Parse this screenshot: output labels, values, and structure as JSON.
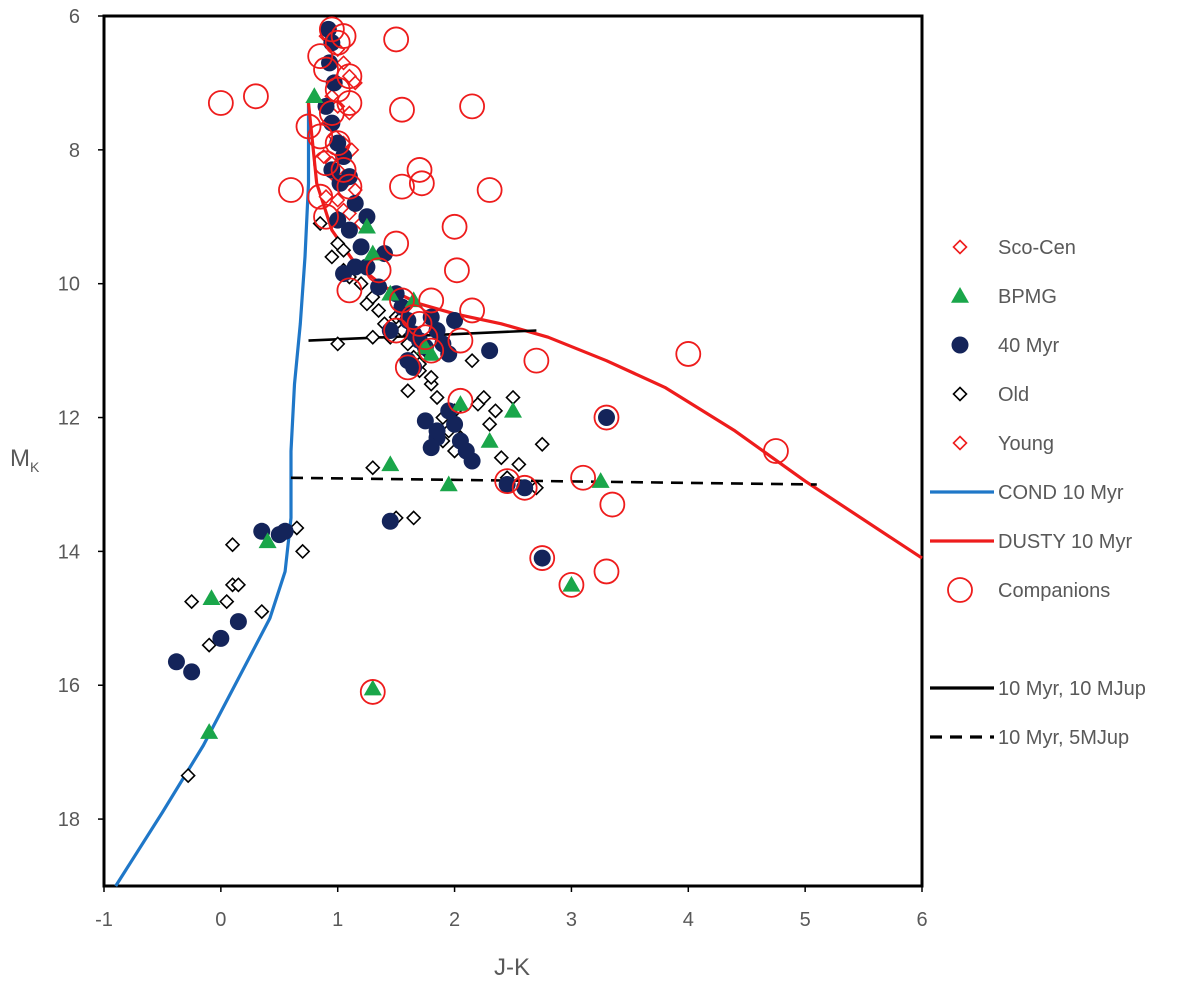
{
  "chart_data": {
    "type": "scatter",
    "title": "",
    "xlabel": "J-K",
    "ylabel": "M",
    "ylabel_sub": "K",
    "xlim": [
      -1,
      6
    ],
    "ylim": [
      19,
      6
    ],
    "y_inverted": true,
    "grid": false,
    "xticks": [
      "-1",
      "0",
      "1",
      "2",
      "3",
      "4",
      "5",
      "6"
    ],
    "yticks": [
      "6",
      "8",
      "10",
      "12",
      "14",
      "16",
      "18"
    ],
    "colors": {
      "red": "#ee1c1c",
      "green": "#1aa64a",
      "navy": "#14245a",
      "blue": "#1f77c8",
      "black": "#000000",
      "axis": "#000000"
    },
    "legend": [
      {
        "label": "Sco-Cen",
        "marker": "diamond",
        "color": "#ee1c1c"
      },
      {
        "label": "BPMG",
        "marker": "triangle",
        "color": "#1aa64a"
      },
      {
        "label": "40 Myr",
        "marker": "circle-filled",
        "color": "#14245a"
      },
      {
        "label": "Old",
        "marker": "diamond",
        "color": "#000000"
      },
      {
        "label": "Young",
        "marker": "diamond",
        "color": "#ee1c1c"
      },
      {
        "label": "COND 10 Myr",
        "marker": "line",
        "color": "#1f77c8"
      },
      {
        "label": "DUSTY 10 Myr",
        "marker": "line",
        "color": "#ee1c1c"
      },
      {
        "label": "Companions",
        "marker": "circle-open",
        "color": "#ee1c1c"
      },
      {
        "label": "10 Myr, 10 MJup",
        "marker": "line",
        "color": "#000000"
      },
      {
        "label": "10 Myr, 5MJup",
        "marker": "dashed",
        "color": "#000000"
      }
    ],
    "series": [
      {
        "name": "COND 10 Myr",
        "kind": "line",
        "color": "#1f77c8",
        "x": [
          -0.9,
          -0.5,
          -0.15,
          0.15,
          0.42,
          0.55,
          0.6,
          0.6,
          0.63,
          0.68,
          0.72,
          0.75,
          0.75
        ],
        "y": [
          19.0,
          17.9,
          16.9,
          15.9,
          15.0,
          14.3,
          13.5,
          12.5,
          11.5,
          10.6,
          9.6,
          8.5,
          7.3
        ]
      },
      {
        "name": "DUSTY 10 Myr",
        "kind": "line",
        "color": "#ee1c1c",
        "x": [
          0.75,
          0.82,
          0.95,
          1.15,
          1.4,
          1.7,
          2.0,
          2.4,
          2.8,
          3.3,
          3.8,
          4.4,
          5.0,
          6.0
        ],
        "y": [
          7.3,
          8.5,
          9.2,
          9.7,
          10.05,
          10.3,
          10.45,
          10.6,
          10.8,
          11.15,
          11.55,
          12.2,
          12.95,
          14.1
        ]
      },
      {
        "name": "10 Myr, 10 MJup",
        "kind": "line",
        "color": "#000000",
        "x": [
          0.75,
          2.7
        ],
        "y": [
          10.85,
          10.7
        ]
      },
      {
        "name": "10 Myr, 5MJup",
        "kind": "dashed",
        "color": "#000000",
        "x": [
          0.6,
          5.1
        ],
        "y": [
          12.9,
          13.0
        ]
      },
      {
        "name": "Old",
        "kind": "diamond",
        "color": "#000000",
        "x": [
          0.85,
          0.95,
          1.0,
          1.05,
          1.1,
          1.2,
          1.25,
          1.3,
          1.35,
          1.4,
          1.45,
          1.5,
          1.55,
          1.6,
          1.65,
          1.7,
          1.75,
          1.8,
          1.85,
          1.9,
          1.95,
          2.0,
          2.05,
          2.1,
          2.2,
          2.25,
          2.3,
          2.35,
          2.4,
          2.45,
          2.5,
          2.55,
          2.75,
          2.7,
          1.0,
          1.05,
          1.3,
          1.55,
          1.7,
          1.8,
          2.0,
          1.3,
          1.5,
          1.65,
          0.1,
          0.1,
          0.15,
          0.05,
          -0.1,
          -0.25,
          0.35,
          0.65,
          0.7,
          -0.28,
          1.9,
          2.15,
          1.6
        ],
        "y": [
          9.1,
          9.6,
          9.4,
          9.5,
          9.9,
          10.0,
          10.3,
          10.2,
          10.4,
          10.6,
          10.8,
          10.5,
          10.7,
          10.9,
          11.1,
          11.3,
          11.0,
          11.5,
          11.7,
          12.0,
          12.2,
          11.9,
          12.3,
          12.5,
          11.8,
          11.7,
          12.1,
          11.9,
          12.6,
          12.9,
          11.7,
          12.7,
          12.4,
          13.05,
          10.9,
          9.8,
          10.8,
          10.5,
          11.2,
          11.4,
          12.5,
          12.75,
          13.5,
          13.5,
          13.9,
          14.5,
          14.5,
          14.75,
          15.4,
          14.75,
          14.9,
          13.65,
          14.0,
          17.35,
          12.35,
          11.15,
          11.6
        ]
      },
      {
        "name": "Sco-Cen",
        "kind": "diamond",
        "color": "#ee1c1c",
        "x": [
          0.9,
          1.0,
          1.05,
          1.1,
          1.15,
          0.95,
          1.0,
          1.1,
          0.92,
          0.98,
          1.05,
          1.12,
          0.88,
          0.95,
          1.0,
          1.08,
          1.15,
          0.9,
          1.0,
          1.05,
          1.1,
          1.2,
          0.95,
          1.05
        ],
        "y": [
          6.3,
          6.5,
          6.7,
          6.9,
          7.0,
          7.2,
          7.35,
          7.45,
          7.6,
          7.8,
          7.9,
          8.0,
          8.1,
          8.2,
          8.3,
          8.45,
          8.6,
          8.7,
          8.75,
          8.9,
          8.95,
          9.1,
          8.35,
          8.5
        ]
      },
      {
        "name": "40 Myr",
        "kind": "circle-filled",
        "color": "#14245a",
        "x": [
          0.92,
          0.95,
          0.93,
          0.97,
          0.9,
          0.95,
          1.0,
          1.05,
          0.95,
          1.02,
          1.1,
          1.15,
          1.25,
          1.1,
          1.2,
          1.05,
          1.15,
          1.25,
          1.4,
          1.5,
          1.55,
          1.6,
          1.65,
          1.7,
          1.75,
          1.8,
          1.85,
          1.9,
          1.95,
          2.0,
          1.6,
          1.65,
          1.45,
          1.75,
          1.85,
          2.0,
          2.05,
          2.1,
          2.15,
          1.8,
          1.85,
          1.95,
          2.3,
          2.45,
          2.6,
          2.75,
          3.3,
          1.45,
          0.35,
          0.5,
          0.55,
          0.15,
          0.0,
          -0.25,
          -0.38,
          1.35,
          1.0
        ],
        "y": [
          6.2,
          6.4,
          6.7,
          7.0,
          7.35,
          7.6,
          7.9,
          8.1,
          8.3,
          8.5,
          8.4,
          8.8,
          9.0,
          9.2,
          9.45,
          9.85,
          9.75,
          9.75,
          9.55,
          10.15,
          10.35,
          10.55,
          10.75,
          10.85,
          10.95,
          10.5,
          10.7,
          10.9,
          11.05,
          10.55,
          11.15,
          11.25,
          10.7,
          12.05,
          12.3,
          12.1,
          12.35,
          12.5,
          12.65,
          12.45,
          12.2,
          11.9,
          11.0,
          13.0,
          13.05,
          14.1,
          12.0,
          13.55,
          13.7,
          13.75,
          13.7,
          15.05,
          15.3,
          15.8,
          15.65,
          10.05,
          9.05
        ]
      },
      {
        "name": "BPMG",
        "kind": "triangle",
        "color": "#1aa64a",
        "x": [
          0.8,
          1.25,
          1.3,
          1.45,
          1.75,
          2.05,
          2.3,
          2.5,
          1.45,
          1.95,
          3.25,
          0.4,
          -0.08,
          -0.1,
          1.3,
          3.0,
          1.8,
          1.65
        ],
        "y": [
          7.2,
          9.15,
          9.55,
          10.15,
          10.95,
          11.8,
          12.35,
          11.9,
          12.7,
          13.0,
          12.95,
          13.85,
          14.7,
          16.7,
          16.05,
          14.5,
          11.05,
          10.25
        ]
      },
      {
        "name": "Companions",
        "kind": "circle-open",
        "color": "#ee1c1c",
        "x": [
          0.0,
          0.3,
          0.95,
          1.0,
          1.05,
          1.1,
          1.0,
          1.1,
          0.85,
          0.9,
          0.75,
          0.85,
          0.95,
          1.0,
          0.9,
          1.05,
          1.1,
          0.9,
          0.85,
          0.6,
          1.5,
          1.55,
          2.15,
          1.55,
          1.7,
          1.72,
          2.3,
          2.0,
          1.5,
          2.02,
          1.35,
          1.1,
          1.55,
          1.8,
          1.65,
          1.7,
          1.75,
          2.15,
          1.6,
          1.5,
          1.8,
          2.05,
          2.7,
          4.0,
          3.3,
          2.05,
          2.45,
          2.6,
          3.1,
          3.35,
          3.3,
          4.75,
          3.0,
          2.75,
          1.3
        ],
        "y": [
          7.3,
          7.2,
          6.2,
          6.4,
          6.3,
          6.9,
          7.1,
          7.3,
          6.6,
          6.8,
          7.65,
          7.8,
          7.45,
          7.9,
          8.2,
          8.3,
          8.55,
          9.0,
          8.7,
          8.6,
          6.35,
          7.4,
          7.35,
          8.55,
          8.3,
          8.5,
          8.6,
          9.15,
          9.4,
          9.8,
          9.8,
          10.1,
          10.25,
          10.25,
          10.5,
          10.6,
          10.8,
          10.4,
          11.25,
          10.7,
          11.0,
          10.85,
          11.15,
          11.05,
          12.0,
          11.75,
          12.95,
          13.05,
          12.9,
          13.3,
          14.3,
          12.5,
          14.5,
          14.1,
          16.1
        ]
      }
    ]
  }
}
